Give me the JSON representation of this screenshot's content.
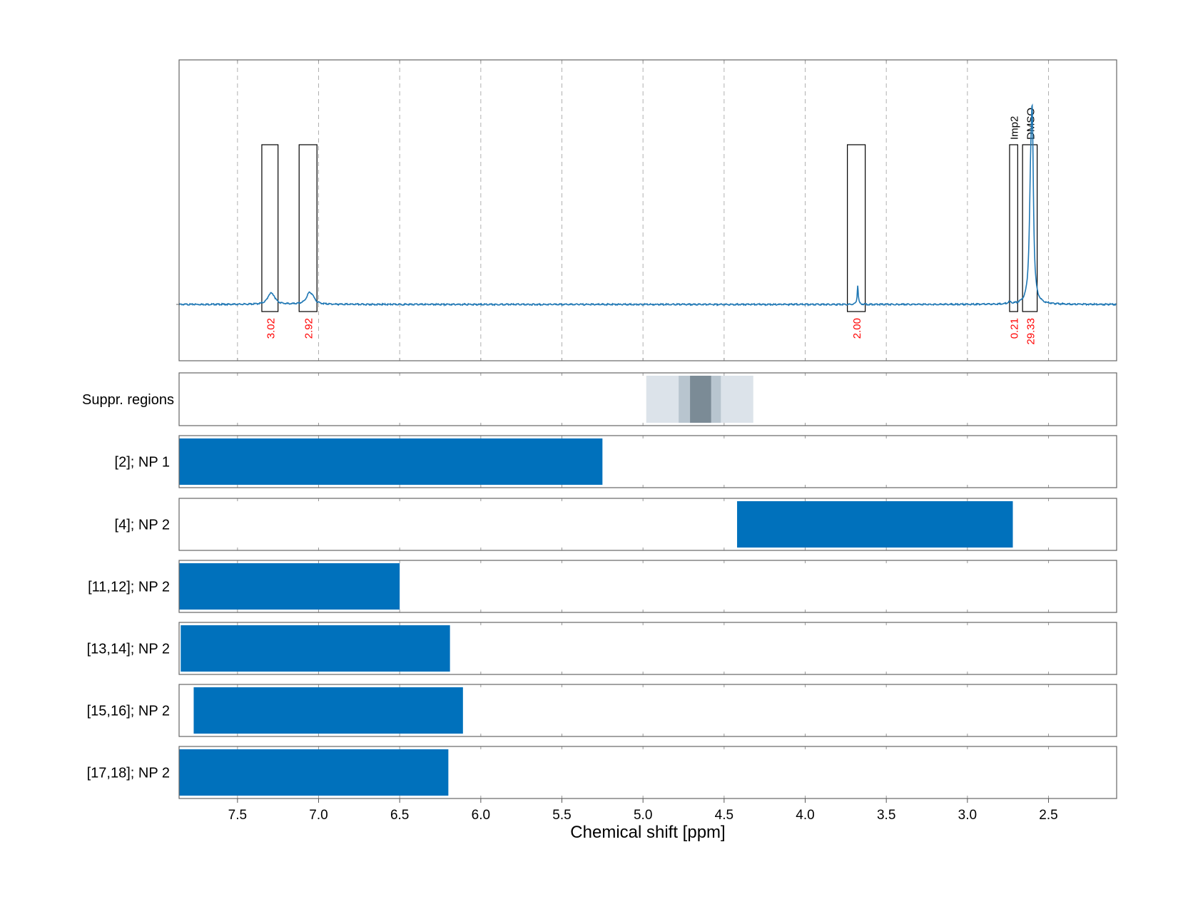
{
  "chart_data": {
    "type": "nmr-spectrum",
    "xlabel": "Chemical shift [ppm]",
    "xlim": [
      7.86,
      2.08
    ],
    "x_ticks": [
      7.5,
      7.0,
      6.5,
      6.0,
      5.5,
      5.0,
      4.5,
      4.0,
      3.5,
      3.0,
      2.5
    ],
    "x_tick_labels": [
      "7.5",
      "7.0",
      "6.5",
      "6.0",
      "5.5",
      "5.0",
      "4.5",
      "4.0",
      "3.5",
      "3.0",
      "2.5"
    ],
    "grid": "vertical dashed",
    "baseline": 0,
    "spectrum_peaks": [
      {
        "ppm": 7.3,
        "height": 0.045,
        "width": 0.02
      },
      {
        "ppm": 7.28,
        "height": 0.035,
        "width": 0.02
      },
      {
        "ppm": 7.06,
        "height": 0.05,
        "width": 0.02
      },
      {
        "ppm": 7.04,
        "height": 0.035,
        "width": 0.02
      },
      {
        "ppm": 3.676,
        "height": 0.11,
        "width": 0.004
      },
      {
        "ppm": 2.74,
        "height": 0.012,
        "width": 0.01
      },
      {
        "ppm": 2.6,
        "height": 0.88,
        "width": 0.008
      },
      {
        "ppm": 2.61,
        "height": 0.55,
        "width": 0.01
      }
    ],
    "integration_regions": [
      {
        "from": 7.35,
        "to": 7.25,
        "integral": "3.02",
        "label": ""
      },
      {
        "from": 7.12,
        "to": 7.01,
        "integral": "2.92",
        "label": ""
      },
      {
        "from": 3.74,
        "to": 3.63,
        "integral": "2.00",
        "label": ""
      },
      {
        "from": 2.74,
        "to": 2.69,
        "integral": "0.21",
        "label": "Imp2"
      },
      {
        "from": 2.66,
        "to": 2.57,
        "integral": "29.33",
        "label": "DMSO"
      }
    ],
    "suppression_regions": {
      "label": "Suppr. regions",
      "bands": [
        {
          "from": 4.98,
          "to": 4.32,
          "shade": "#dce3ea"
        },
        {
          "from": 4.78,
          "to": 4.52,
          "shade": "#b8c5cf"
        },
        {
          "from": 4.71,
          "to": 4.58,
          "shade": "#7b8b96"
        }
      ]
    },
    "range_rows": [
      {
        "label": "[2]; NP 1",
        "from": 7.86,
        "to": 5.25
      },
      {
        "label": "[4]; NP 2",
        "from": 4.42,
        "to": 2.72
      },
      {
        "label": "[11,12]; NP 2",
        "from": 7.86,
        "to": 6.5
      },
      {
        "label": "[13,14]; NP 2",
        "from": 7.85,
        "to": 6.19
      },
      {
        "label": "[15,16]; NP 2",
        "from": 7.77,
        "to": 6.11
      },
      {
        "label": "[17,18]; NP 2",
        "from": 7.86,
        "to": 6.2
      }
    ]
  },
  "colors": {
    "spectrum": "#1f77b4",
    "range_bar": "#0071bc",
    "integral_text": "#ff0000",
    "grid": "#b0b0b0",
    "frame": "#666666"
  }
}
